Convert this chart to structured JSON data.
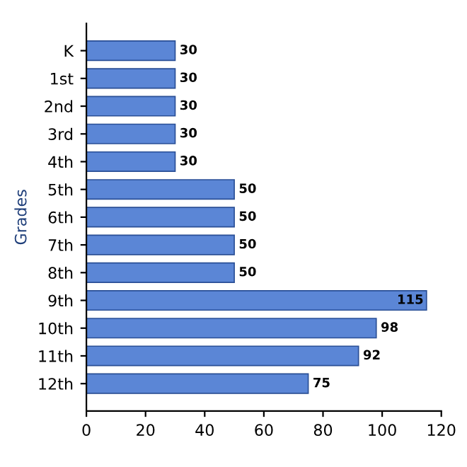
{
  "chart_data": {
    "type": "bar",
    "orientation": "horizontal",
    "ylabel": "Grades",
    "categories": [
      "K",
      "1st",
      "2nd",
      "3rd",
      "4th",
      "5th",
      "6th",
      "7th",
      "8th",
      "9th",
      "10th",
      "11th",
      "12th"
    ],
    "values": [
      30,
      30,
      30,
      30,
      30,
      50,
      50,
      50,
      50,
      115,
      98,
      92,
      75
    ],
    "color": "#5b86d6",
    "xlim": [
      0,
      120
    ],
    "xticks": [
      0,
      20,
      40,
      60,
      80,
      100,
      120
    ],
    "data_labels": true
  }
}
